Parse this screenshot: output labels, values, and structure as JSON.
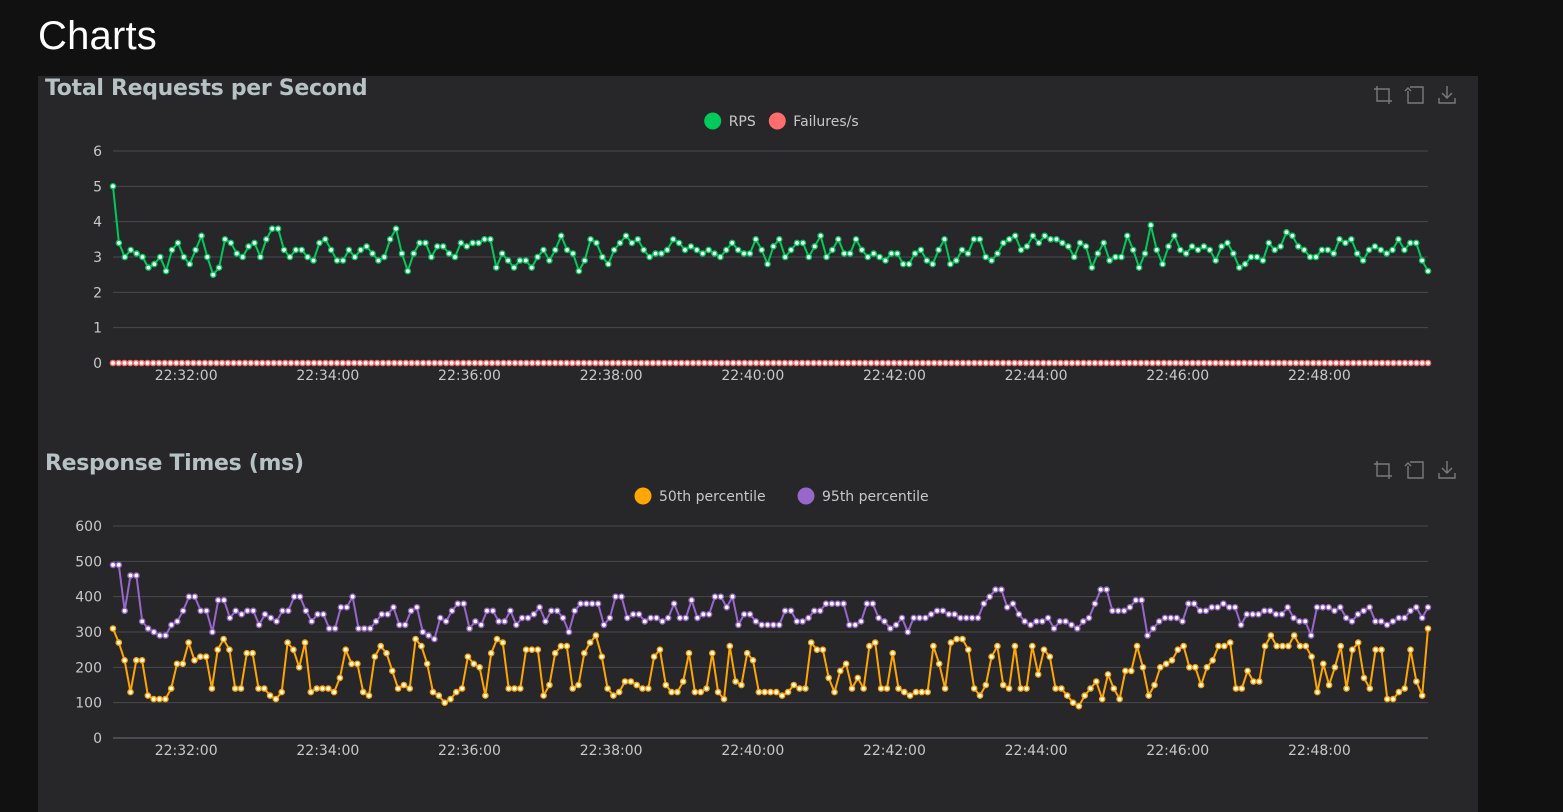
{
  "page": {
    "title": "Charts"
  },
  "toolbox": [
    "crop-icon",
    "restore-icon",
    "download-icon"
  ],
  "colors": {
    "rps": "#00ca5a",
    "failures": "#ff6d6d",
    "p50": "#ffa600",
    "p95": "#9966cc",
    "grid": "#4a4a4e",
    "axis_text": "#c8c8c8",
    "panel": "#27272a",
    "background": "#111111"
  },
  "chart_data": [
    {
      "type": "line",
      "title": "Total Requests per Second",
      "xlabel": "",
      "ylabel": "",
      "ylim": [
        0,
        6
      ],
      "yticks": [
        "0",
        "1",
        "2",
        "3",
        "4",
        "5",
        "6"
      ],
      "xticks": [
        "22:32:00",
        "22:34:00",
        "22:36:00",
        "22:38:00",
        "22:40:00",
        "22:42:00",
        "22:44:00",
        "22:46:00",
        "22:48:00"
      ],
      "x_range": [
        "22:30:58",
        "22:49:32"
      ],
      "grid": true,
      "legend": "top-center",
      "series": [
        {
          "name": "RPS",
          "color": "#00ca5a",
          "values": [
            5.0,
            3.4,
            3.0,
            3.2,
            3.1,
            3.0,
            2.7,
            2.8,
            3.0,
            2.6,
            3.2,
            3.4,
            3.0,
            2.8,
            3.2,
            3.6,
            3.0,
            2.5,
            2.7,
            3.5,
            3.4,
            3.1,
            3.0,
            3.3,
            3.4,
            3.0,
            3.5,
            3.8,
            3.8,
            3.2,
            3.0,
            3.2,
            3.2,
            3.0,
            2.9,
            3.4,
            3.5,
            3.2,
            2.9,
            2.9,
            3.2,
            3.0,
            3.2,
            3.3,
            3.1,
            2.9,
            3.0,
            3.5,
            3.8,
            3.1,
            2.6,
            3.1,
            3.4,
            3.4,
            3.0,
            3.3,
            3.3,
            3.1,
            3.0,
            3.4,
            3.3,
            3.4,
            3.4,
            3.5,
            3.5,
            2.7,
            3.1,
            2.9,
            2.7,
            2.9,
            2.9,
            2.7,
            3.0,
            3.2,
            2.9,
            3.2,
            3.6,
            3.2,
            3.1,
            2.6,
            2.9,
            3.5,
            3.4,
            3.0,
            2.8,
            3.2,
            3.4,
            3.6,
            3.4,
            3.5,
            3.2,
            3.0,
            3.1,
            3.1,
            3.2,
            3.5,
            3.4,
            3.2,
            3.3,
            3.2,
            3.1,
            3.2,
            3.1,
            3.0,
            3.2,
            3.4,
            3.2,
            3.1,
            3.1,
            3.5,
            3.2,
            2.8,
            3.3,
            3.5,
            3.0,
            3.2,
            3.4,
            3.4,
            3.0,
            3.3,
            3.6,
            3.0,
            3.2,
            3.5,
            3.1,
            3.1,
            3.5,
            3.2,
            3.0,
            3.1,
            3.0,
            2.9,
            3.1,
            3.1,
            2.8,
            2.8,
            3.1,
            3.2,
            2.9,
            2.8,
            3.2,
            3.5,
            2.8,
            2.9,
            3.2,
            3.1,
            3.5,
            3.5,
            3.0,
            2.9,
            3.1,
            3.4,
            3.5,
            3.6,
            3.2,
            3.3,
            3.6,
            3.4,
            3.6,
            3.5,
            3.5,
            3.4,
            3.3,
            3.0,
            3.4,
            3.3,
            2.7,
            3.1,
            3.4,
            2.9,
            3.0,
            3.0,
            3.6,
            3.2,
            2.7,
            3.1,
            3.9,
            3.2,
            2.8,
            3.3,
            3.6,
            3.2,
            3.1,
            3.3,
            3.2,
            3.3,
            3.2,
            2.9,
            3.3,
            3.4,
            3.1,
            2.7,
            2.8,
            3.0,
            3.0,
            2.9,
            3.4,
            3.2,
            3.3,
            3.7,
            3.6,
            3.3,
            3.2,
            3.0,
            3.0,
            3.2,
            3.2,
            3.1,
            3.5,
            3.4,
            3.5,
            3.1,
            2.9,
            3.2,
            3.3,
            3.2,
            3.1,
            3.2,
            3.5,
            3.2,
            3.4,
            3.4,
            2.9,
            2.6
          ]
        },
        {
          "name": "Failures/s",
          "color": "#ff6d6d",
          "values": [
            0,
            0,
            0,
            0,
            0,
            0,
            0,
            0,
            0,
            0,
            0,
            0,
            0,
            0,
            0,
            0,
            0,
            0,
            0,
            0,
            0,
            0,
            0,
            0,
            0,
            0,
            0,
            0,
            0,
            0,
            0,
            0,
            0,
            0,
            0,
            0,
            0,
            0,
            0,
            0,
            0,
            0,
            0,
            0,
            0,
            0,
            0,
            0,
            0,
            0,
            0,
            0,
            0,
            0,
            0,
            0,
            0,
            0,
            0,
            0,
            0,
            0,
            0,
            0,
            0,
            0,
            0,
            0,
            0,
            0,
            0,
            0,
            0,
            0,
            0,
            0,
            0,
            0,
            0,
            0,
            0,
            0,
            0,
            0,
            0,
            0,
            0,
            0,
            0,
            0,
            0,
            0,
            0,
            0,
            0,
            0,
            0,
            0,
            0,
            0,
            0,
            0,
            0,
            0,
            0,
            0,
            0,
            0,
            0,
            0,
            0,
            0,
            0,
            0,
            0,
            0,
            0,
            0,
            0,
            0,
            0,
            0,
            0,
            0,
            0,
            0,
            0,
            0,
            0,
            0,
            0,
            0,
            0,
            0,
            0,
            0,
            0,
            0,
            0,
            0,
            0,
            0,
            0,
            0,
            0,
            0,
            0,
            0,
            0,
            0,
            0,
            0,
            0,
            0,
            0,
            0,
            0,
            0,
            0,
            0,
            0,
            0,
            0,
            0,
            0,
            0,
            0,
            0,
            0,
            0,
            0,
            0,
            0,
            0,
            0,
            0,
            0,
            0,
            0,
            0,
            0,
            0,
            0,
            0,
            0,
            0,
            0,
            0,
            0,
            0,
            0,
            0,
            0,
            0,
            0,
            0,
            0,
            0,
            0,
            0,
            0,
            0,
            0,
            0,
            0,
            0,
            0,
            0,
            0,
            0,
            0,
            0,
            0,
            0,
            0,
            0,
            0,
            0,
            0,
            0,
            0,
            0,
            0,
            0,
            0,
            0,
            0,
            0,
            0,
            0
          ]
        }
      ]
    },
    {
      "type": "line",
      "title": "Response Times (ms)",
      "xlabel": "",
      "ylabel": "",
      "ylim": [
        0,
        600
      ],
      "yticks": [
        "0",
        "100",
        "200",
        "300",
        "400",
        "500",
        "600"
      ],
      "xticks": [
        "22:32:00",
        "22:34:00",
        "22:36:00",
        "22:38:00",
        "22:40:00",
        "22:42:00",
        "22:44:00",
        "22:46:00",
        "22:48:00"
      ],
      "x_range": [
        "22:30:58",
        "22:49:32"
      ],
      "grid": true,
      "legend": "top-center",
      "series": [
        {
          "name": "50th percentile",
          "color": "#ffa600",
          "values": [
            310,
            270,
            220,
            130,
            220,
            220,
            120,
            110,
            110,
            110,
            140,
            210,
            210,
            270,
            220,
            230,
            230,
            140,
            250,
            280,
            250,
            140,
            140,
            240,
            240,
            140,
            140,
            120,
            110,
            130,
            270,
            250,
            200,
            270,
            130,
            140,
            140,
            140,
            130,
            170,
            250,
            210,
            210,
            130,
            120,
            230,
            260,
            240,
            190,
            140,
            150,
            140,
            280,
            260,
            210,
            130,
            120,
            100,
            110,
            130,
            140,
            230,
            210,
            200,
            120,
            240,
            280,
            270,
            140,
            140,
            140,
            250,
            250,
            250,
            120,
            150,
            240,
            260,
            260,
            140,
            150,
            240,
            270,
            290,
            230,
            140,
            120,
            130,
            160,
            160,
            150,
            140,
            140,
            230,
            250,
            150,
            130,
            130,
            160,
            240,
            130,
            130,
            140,
            240,
            130,
            110,
            260,
            160,
            150,
            240,
            220,
            130,
            130,
            130,
            130,
            120,
            130,
            150,
            140,
            140,
            270,
            250,
            250,
            170,
            130,
            190,
            210,
            140,
            170,
            140,
            260,
            270,
            140,
            140,
            240,
            140,
            130,
            120,
            130,
            130,
            130,
            260,
            210,
            140,
            270,
            280,
            280,
            250,
            140,
            120,
            150,
            230,
            260,
            150,
            140,
            260,
            140,
            140,
            260,
            180,
            250,
            230,
            140,
            140,
            120,
            100,
            90,
            120,
            140,
            160,
            110,
            180,
            140,
            110,
            190,
            190,
            260,
            200,
            120,
            150,
            200,
            210,
            220,
            250,
            260,
            200,
            200,
            150,
            200,
            220,
            260,
            260,
            270,
            140,
            140,
            190,
            160,
            160,
            260,
            290,
            260,
            260,
            260,
            290,
            260,
            260,
            230,
            130,
            210,
            150,
            200,
            260,
            140,
            250,
            270,
            170,
            140,
            250,
            250,
            110,
            110,
            130,
            140,
            250,
            160,
            120,
            310
          ]
        },
        {
          "name": "95th percentile",
          "color": "#9966cc",
          "values": [
            490,
            490,
            360,
            460,
            460,
            330,
            310,
            300,
            290,
            290,
            320,
            330,
            360,
            400,
            400,
            360,
            360,
            300,
            390,
            390,
            340,
            360,
            350,
            360,
            360,
            320,
            350,
            340,
            330,
            360,
            360,
            400,
            400,
            360,
            330,
            350,
            350,
            310,
            310,
            370,
            370,
            400,
            310,
            310,
            310,
            330,
            350,
            350,
            370,
            320,
            320,
            360,
            370,
            300,
            290,
            280,
            340,
            330,
            360,
            380,
            380,
            310,
            330,
            320,
            360,
            360,
            330,
            330,
            360,
            320,
            340,
            340,
            350,
            370,
            330,
            360,
            360,
            340,
            300,
            360,
            380,
            380,
            380,
            380,
            320,
            340,
            400,
            400,
            340,
            350,
            350,
            330,
            340,
            340,
            330,
            340,
            380,
            340,
            340,
            390,
            340,
            350,
            350,
            400,
            400,
            370,
            400,
            320,
            350,
            350,
            330,
            320,
            320,
            320,
            320,
            360,
            360,
            330,
            330,
            340,
            360,
            360,
            380,
            380,
            380,
            380,
            320,
            320,
            330,
            380,
            380,
            340,
            330,
            310,
            320,
            340,
            300,
            340,
            340,
            340,
            350,
            360,
            360,
            350,
            350,
            340,
            340,
            340,
            340,
            380,
            400,
            420,
            420,
            370,
            380,
            350,
            330,
            320,
            330,
            330,
            340,
            310,
            330,
            330,
            320,
            310,
            330,
            340,
            380,
            420,
            420,
            360,
            360,
            360,
            370,
            390,
            390,
            290,
            310,
            330,
            340,
            340,
            340,
            330,
            380,
            380,
            360,
            360,
            370,
            370,
            380,
            370,
            370,
            320,
            350,
            350,
            350,
            360,
            360,
            350,
            350,
            370,
            340,
            330,
            330,
            290,
            370,
            370,
            370,
            360,
            370,
            340,
            330,
            350,
            360,
            370,
            330,
            330,
            320,
            330,
            340,
            340,
            360,
            370,
            340,
            370
          ]
        }
      ]
    }
  ]
}
